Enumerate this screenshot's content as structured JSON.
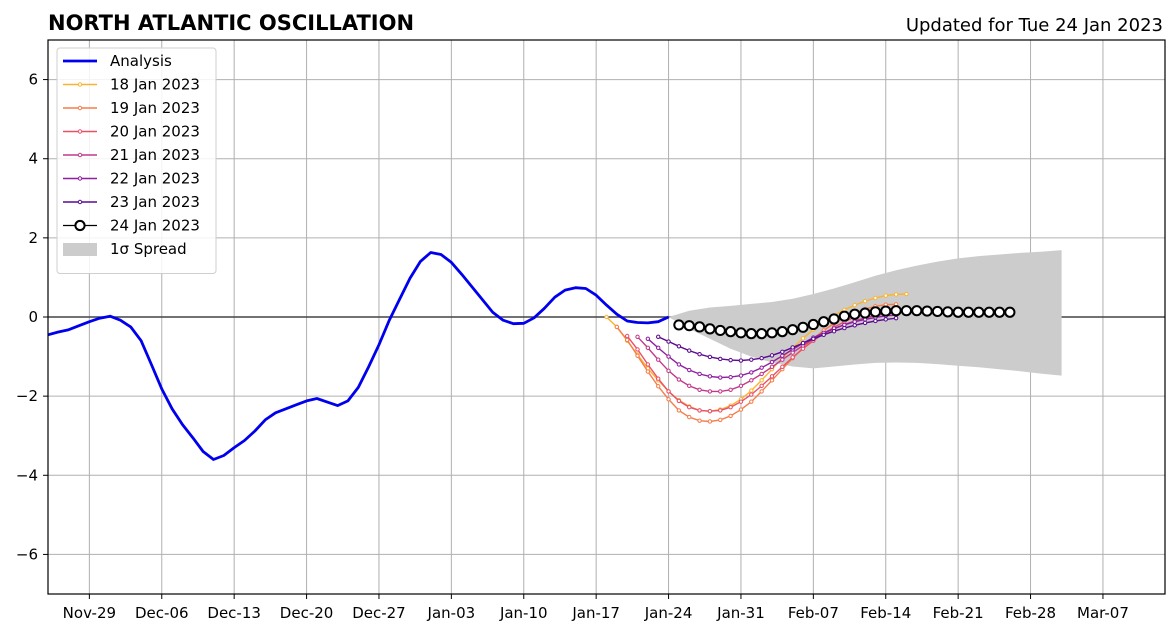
{
  "chart_data": {
    "type": "line",
    "title": "NORTH ATLANTIC OSCILLATION",
    "subtitle": "Updated for Tue 24 Jan 2023",
    "xlabel": "",
    "ylabel": "",
    "x_unit": "day",
    "xlim": [
      "2022-11-25",
      "2023-03-13"
    ],
    "ylim": [
      -7,
      7
    ],
    "yticks": [
      -6,
      -4,
      -2,
      0,
      2,
      4,
      6
    ],
    "ytick_labels": [
      "−6",
      "−4",
      "−2",
      "0",
      "2",
      "4",
      "6"
    ],
    "xticks": [
      "2022-11-29",
      "2022-12-06",
      "2022-12-13",
      "2022-12-20",
      "2022-12-27",
      "2023-01-03",
      "2023-01-10",
      "2023-01-17",
      "2023-01-24",
      "2023-01-31",
      "2023-02-07",
      "2023-02-14",
      "2023-02-21",
      "2023-02-28",
      "2023-03-07"
    ],
    "xtick_labels": [
      "Nov-29",
      "Dec-06",
      "Dec-13",
      "Dec-20",
      "Dec-27",
      "Jan-03",
      "Jan-10",
      "Jan-17",
      "Jan-24",
      "Jan-31",
      "Feb-07",
      "Feb-14",
      "Feb-21",
      "Feb-28",
      "Mar-07"
    ],
    "grid": true,
    "legend_position": "top-left",
    "zero_line": true,
    "series": [
      {
        "name": "Analysis",
        "color": "#0000ee",
        "style": "thick-line",
        "start": "2022-11-25",
        "values": [
          -0.45,
          -0.38,
          -0.32,
          -0.22,
          -0.12,
          -0.03,
          0.02,
          -0.08,
          -0.25,
          -0.6,
          -1.2,
          -1.82,
          -2.32,
          -2.72,
          -3.05,
          -3.4,
          -3.6,
          -3.5,
          -3.3,
          -3.12,
          -2.88,
          -2.6,
          -2.42,
          -2.32,
          -2.22,
          -2.12,
          -2.06,
          -2.15,
          -2.24,
          -2.12,
          -1.78,
          -1.26,
          -0.7,
          -0.08,
          0.45,
          0.98,
          1.4,
          1.63,
          1.58,
          1.38,
          1.08,
          0.76,
          0.44,
          0.12,
          -0.08,
          -0.17,
          -0.16,
          -0.02,
          0.22,
          0.5,
          0.68,
          0.74,
          0.72,
          0.55,
          0.3,
          0.07,
          -0.1,
          -0.14,
          -0.15,
          -0.12,
          0.0
        ]
      },
      {
        "name": "18 Jan 2023",
        "color": "#fbb32f",
        "start": "2023-01-18",
        "values": [
          0.0,
          -0.25,
          -0.6,
          -0.95,
          -1.3,
          -1.6,
          -1.88,
          -2.1,
          -2.26,
          -2.36,
          -2.38,
          -2.34,
          -2.24,
          -2.08,
          -1.86,
          -1.6,
          -1.32,
          -1.04,
          -0.78,
          -0.54,
          -0.32,
          -0.12,
          0.04,
          0.18,
          0.3,
          0.4,
          0.48,
          0.54,
          0.57,
          0.58
        ]
      },
      {
        "name": "19 Jan 2023",
        "color": "#f57d4b",
        "start": "2023-01-19",
        "values": [
          -0.25,
          -0.58,
          -0.98,
          -1.38,
          -1.75,
          -2.08,
          -2.36,
          -2.53,
          -2.62,
          -2.64,
          -2.6,
          -2.5,
          -2.34,
          -2.14,
          -1.88,
          -1.6,
          -1.32,
          -1.04,
          -0.78,
          -0.54,
          -0.34,
          -0.16,
          -0.02,
          0.1,
          0.2,
          0.27,
          0.31,
          0.32
        ]
      },
      {
        "name": "20 Jan 2023",
        "color": "#e8506b",
        "start": "2023-01-20",
        "values": [
          -0.48,
          -0.82,
          -1.2,
          -1.56,
          -1.88,
          -2.12,
          -2.28,
          -2.36,
          -2.38,
          -2.36,
          -2.28,
          -2.14,
          -1.96,
          -1.74,
          -1.5,
          -1.26,
          -1.02,
          -0.8,
          -0.6,
          -0.42,
          -0.26,
          -0.12,
          0.0,
          0.09,
          0.16,
          0.2,
          0.22
        ]
      },
      {
        "name": "21 Jan 2023",
        "color": "#c2398a",
        "start": "2023-01-21",
        "values": [
          -0.5,
          -0.78,
          -1.08,
          -1.36,
          -1.58,
          -1.74,
          -1.84,
          -1.88,
          -1.88,
          -1.84,
          -1.74,
          -1.6,
          -1.44,
          -1.26,
          -1.08,
          -0.9,
          -0.72,
          -0.56,
          -0.42,
          -0.3,
          -0.19,
          -0.1,
          -0.02,
          0.04,
          0.08,
          0.1
        ]
      },
      {
        "name": "22 Jan 2023",
        "color": "#8f1fa0",
        "start": "2023-01-22",
        "values": [
          -0.55,
          -0.78,
          -1.0,
          -1.2,
          -1.34,
          -1.44,
          -1.5,
          -1.53,
          -1.52,
          -1.48,
          -1.4,
          -1.28,
          -1.14,
          -0.98,
          -0.82,
          -0.66,
          -0.52,
          -0.4,
          -0.29,
          -0.2,
          -0.12,
          -0.06,
          -0.01,
          0.03,
          0.05
        ]
      },
      {
        "name": "23 Jan 2023",
        "color": "#5b0b8f",
        "start": "2023-01-23",
        "values": [
          -0.5,
          -0.62,
          -0.74,
          -0.85,
          -0.94,
          -1.01,
          -1.06,
          -1.09,
          -1.1,
          -1.08,
          -1.04,
          -0.97,
          -0.88,
          -0.77,
          -0.66,
          -0.55,
          -0.45,
          -0.36,
          -0.28,
          -0.21,
          -0.15,
          -0.1,
          -0.06,
          -0.03
        ]
      },
      {
        "name": "24 Jan 2023",
        "color": "#000000",
        "style": "open-circles",
        "start": "2023-01-25",
        "values": [
          -0.2,
          -0.22,
          -0.25,
          -0.3,
          -0.34,
          -0.37,
          -0.4,
          -0.42,
          -0.42,
          -0.4,
          -0.37,
          -0.32,
          -0.26,
          -0.19,
          -0.12,
          -0.05,
          0.02,
          0.07,
          0.1,
          0.13,
          0.15,
          0.16,
          0.16,
          0.16,
          0.15,
          0.14,
          0.13,
          0.12,
          0.12,
          0.12,
          0.12,
          0.12,
          0.12
        ]
      }
    ],
    "spread": {
      "name": "1σ Spread",
      "color": "#cccccc",
      "start": "2023-01-24",
      "step_days": 2,
      "upper": [
        0.0,
        0.16,
        0.24,
        0.28,
        0.33,
        0.38,
        0.46,
        0.58,
        0.72,
        0.88,
        1.04,
        1.18,
        1.3,
        1.4,
        1.48,
        1.54,
        1.58,
        1.62,
        1.65,
        1.69
      ],
      "lower": [
        0.0,
        -0.3,
        -0.55,
        -0.8,
        -1.0,
        -1.15,
        -1.25,
        -1.3,
        -1.25,
        -1.2,
        -1.16,
        -1.15,
        -1.16,
        -1.19,
        -1.23,
        -1.27,
        -1.32,
        -1.37,
        -1.43,
        -1.48
      ]
    }
  }
}
